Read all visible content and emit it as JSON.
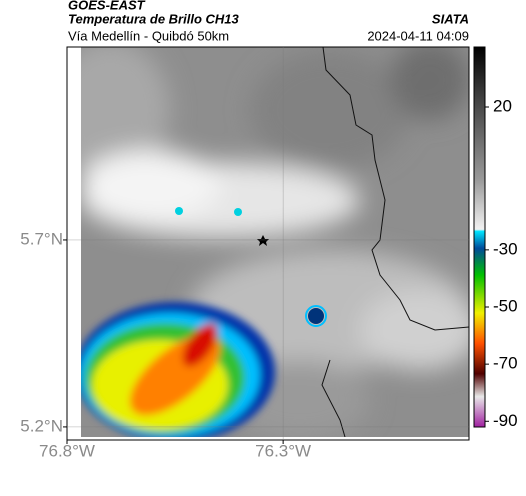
{
  "header": {
    "satellite": "GOES-EAST",
    "product": "Temperatura de Brillo CH13",
    "region": "Vía Medellín - Quibdó 50km",
    "source": "SIATA",
    "timestamp": "2024-04-11 04:09"
  },
  "map": {
    "xlim": [
      -76.8,
      -75.87
    ],
    "ylim": [
      5.165,
      6.216
    ],
    "xticks": [
      {
        "value": -76.8,
        "label": "76.8°W"
      },
      {
        "value": -76.3,
        "label": "76.3°W"
      }
    ],
    "yticks": [
      {
        "value": 5.2,
        "label": "5.2°N"
      },
      {
        "value": 5.7,
        "label": "5.7°N"
      }
    ],
    "grid": true
  },
  "colorbar": {
    "lim": [
      -92,
      41
    ],
    "ticks": [
      20,
      -30,
      -50,
      -70,
      -90
    ]
  }
}
